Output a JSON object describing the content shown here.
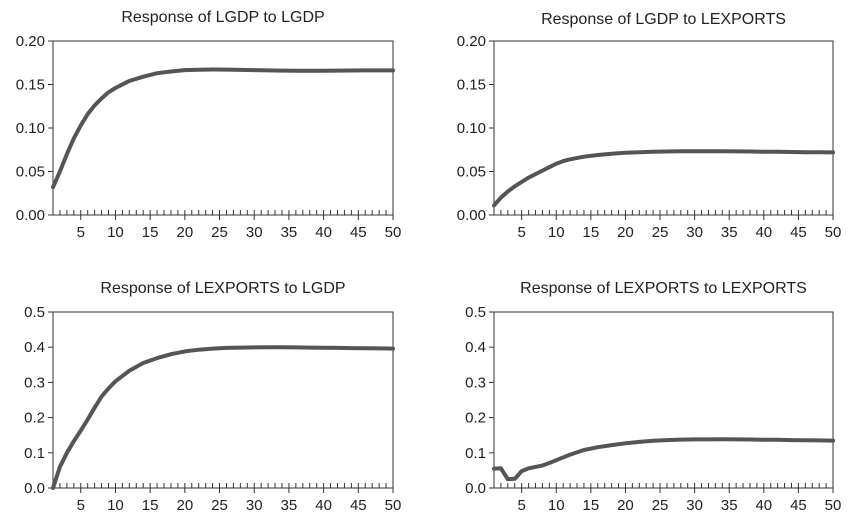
{
  "chart_data": [
    {
      "type": "line",
      "title": "Response of LGDP to LGDP",
      "xlabel": "",
      "ylabel": "",
      "xlim": [
        1,
        50
      ],
      "ylim": [
        0,
        0.2
      ],
      "x_ticks": [
        5,
        10,
        15,
        20,
        25,
        30,
        35,
        40,
        45,
        50
      ],
      "y_ticks": [
        "0.00",
        "0.05",
        "0.10",
        "0.15",
        "0.20"
      ],
      "grid": false,
      "line_color": "#555555",
      "x": [
        1,
        2,
        3,
        4,
        5,
        6,
        7,
        8,
        9,
        10,
        12,
        14,
        16,
        18,
        20,
        22,
        24,
        26,
        28,
        30,
        32,
        34,
        36,
        38,
        40,
        42,
        44,
        46,
        48,
        50
      ],
      "y": [
        0.032,
        0.05,
        0.07,
        0.088,
        0.103,
        0.116,
        0.126,
        0.134,
        0.141,
        0.146,
        0.154,
        0.159,
        0.163,
        0.165,
        0.1665,
        0.167,
        0.1672,
        0.1671,
        0.1668,
        0.1665,
        0.1662,
        0.166,
        0.1658,
        0.1658,
        0.1659,
        0.166,
        0.1661,
        0.1662,
        0.1662,
        0.1662
      ]
    },
    {
      "type": "line",
      "title": "Response of LGDP to LEXPORTS",
      "xlabel": "",
      "ylabel": "",
      "xlim": [
        1,
        50
      ],
      "ylim": [
        0,
        0.2
      ],
      "x_ticks": [
        5,
        10,
        15,
        20,
        25,
        30,
        35,
        40,
        45,
        50
      ],
      "y_ticks": [
        "0.00",
        "0.05",
        "0.10",
        "0.15",
        "0.20"
      ],
      "grid": false,
      "line_color": "#555555",
      "x": [
        1,
        2,
        3,
        4,
        5,
        6,
        7,
        8,
        9,
        10,
        11,
        12,
        14,
        16,
        18,
        20,
        22,
        24,
        26,
        28,
        30,
        32,
        34,
        36,
        38,
        40,
        42,
        44,
        46,
        48,
        50
      ],
      "y": [
        0.011,
        0.02,
        0.027,
        0.033,
        0.038,
        0.043,
        0.047,
        0.051,
        0.055,
        0.059,
        0.062,
        0.064,
        0.067,
        0.069,
        0.0705,
        0.0715,
        0.0722,
        0.0727,
        0.073,
        0.0732,
        0.0733,
        0.0733,
        0.0732,
        0.0731,
        0.073,
        0.0728,
        0.0726,
        0.0724,
        0.0722,
        0.0721,
        0.072
      ]
    },
    {
      "type": "line",
      "title": "Response of LEXPORTS to LGDP",
      "xlabel": "",
      "ylabel": "",
      "xlim": [
        1,
        50
      ],
      "ylim": [
        0,
        0.5
      ],
      "x_ticks": [
        5,
        10,
        15,
        20,
        25,
        30,
        35,
        40,
        45,
        50
      ],
      "y_ticks": [
        "0.0",
        "0.1",
        "0.2",
        "0.3",
        "0.4",
        "0.5"
      ],
      "grid": false,
      "line_color": "#555555",
      "x": [
        1,
        2,
        3,
        4,
        5,
        6,
        7,
        8,
        9,
        10,
        12,
        14,
        16,
        18,
        20,
        22,
        24,
        26,
        28,
        30,
        32,
        34,
        36,
        38,
        40,
        42,
        44,
        46,
        48,
        50
      ],
      "y": [
        0.0,
        0.06,
        0.1,
        0.133,
        0.163,
        0.195,
        0.228,
        0.26,
        0.283,
        0.303,
        0.333,
        0.355,
        0.369,
        0.38,
        0.388,
        0.393,
        0.396,
        0.398,
        0.399,
        0.3995,
        0.3997,
        0.3998,
        0.3995,
        0.399,
        0.3985,
        0.398,
        0.3975,
        0.397,
        0.3965,
        0.396
      ]
    },
    {
      "type": "line",
      "title": "Response of LEXPORTS to LEXPORTS",
      "xlabel": "",
      "ylabel": "",
      "xlim": [
        1,
        50
      ],
      "ylim": [
        0,
        0.5
      ],
      "x_ticks": [
        5,
        10,
        15,
        20,
        25,
        30,
        35,
        40,
        45,
        50
      ],
      "y_ticks": [
        "0.0",
        "0.1",
        "0.2",
        "0.3",
        "0.4",
        "0.5"
      ],
      "grid": false,
      "line_color": "#555555",
      "x": [
        1,
        2,
        3,
        4,
        5,
        6,
        7,
        8,
        9,
        10,
        12,
        14,
        16,
        18,
        20,
        22,
        24,
        26,
        28,
        30,
        32,
        34,
        36,
        38,
        40,
        42,
        44,
        46,
        48,
        50
      ],
      "y": [
        0.055,
        0.056,
        0.025,
        0.026,
        0.048,
        0.056,
        0.06,
        0.064,
        0.071,
        0.079,
        0.095,
        0.108,
        0.116,
        0.122,
        0.127,
        0.131,
        0.134,
        0.136,
        0.1375,
        0.138,
        0.1382,
        0.1383,
        0.1382,
        0.1378,
        0.1373,
        0.1368,
        0.1362,
        0.1357,
        0.1352,
        0.1348
      ]
    }
  ]
}
